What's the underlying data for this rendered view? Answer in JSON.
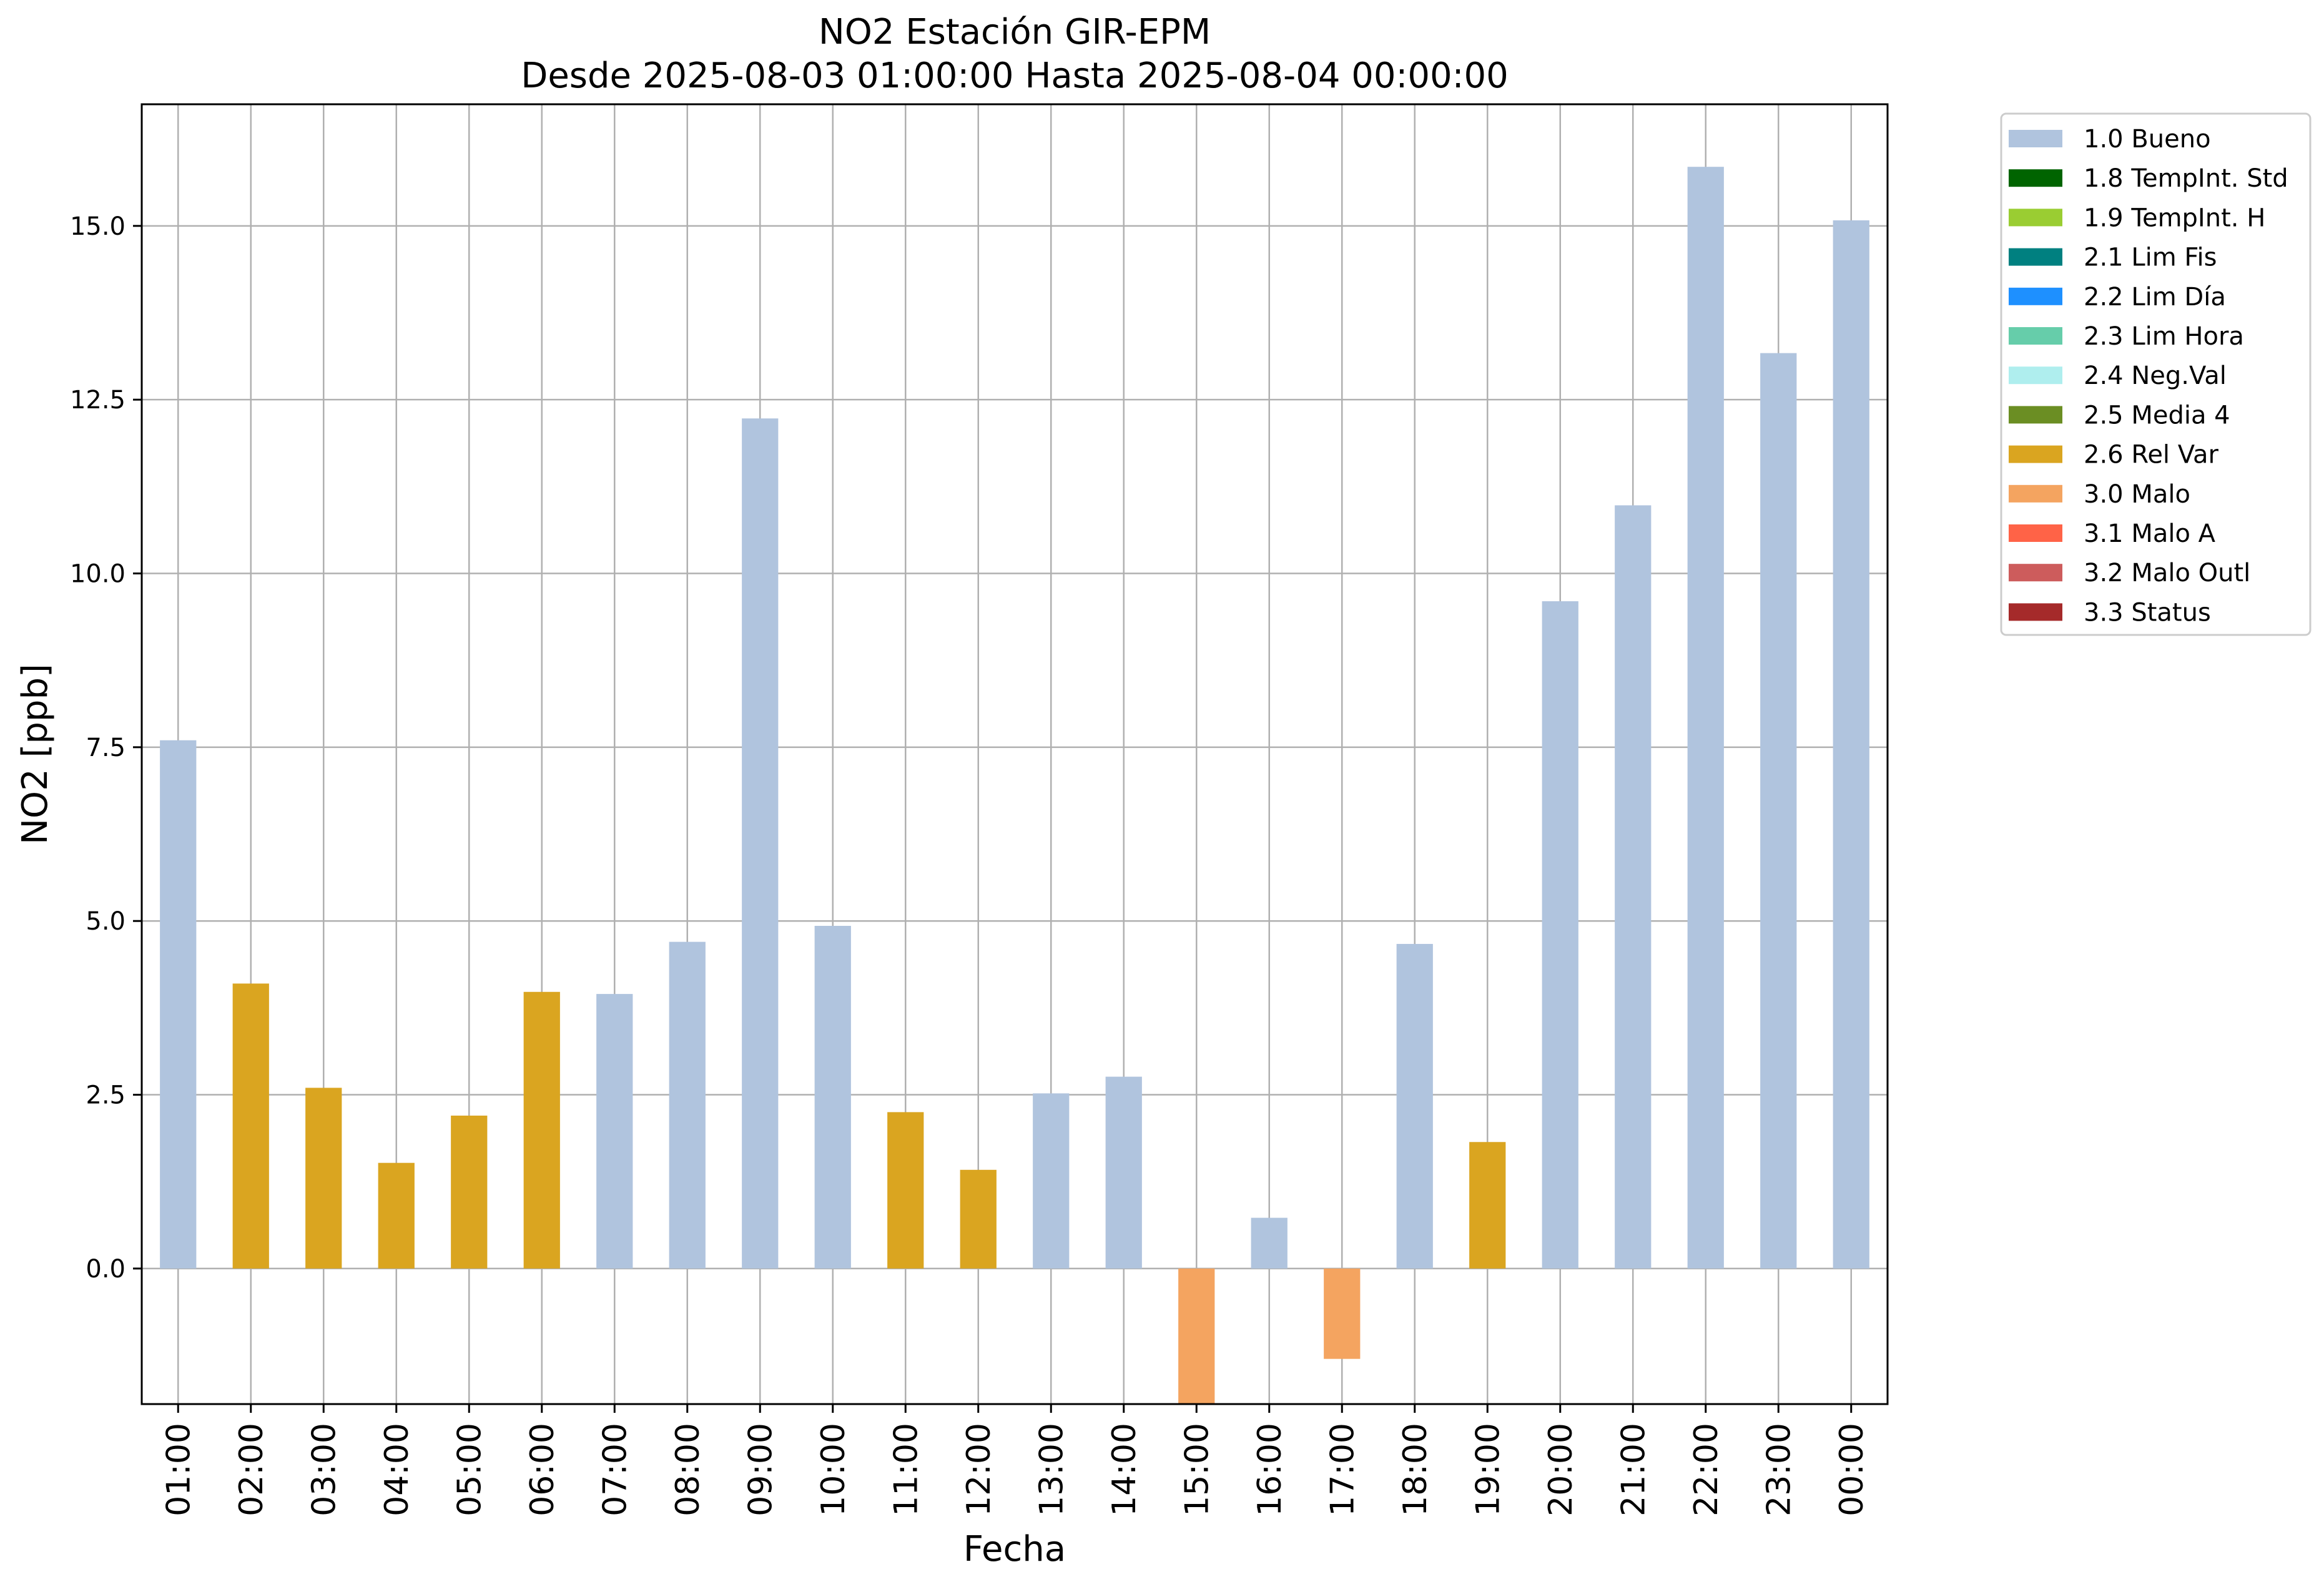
{
  "chart_data": {
    "type": "bar",
    "title": "NO2 Estación GIR-EPM",
    "subtitle": "Desde 2025-08-03 01:00:00 Hasta 2025-08-04 00:00:00",
    "xlabel": "Fecha",
    "ylabel": "NO2 [ppb]",
    "ylim": [
      -1.95,
      16.75
    ],
    "yticks": [
      0.0,
      2.5,
      5.0,
      7.5,
      10.0,
      12.5,
      15.0
    ],
    "ytick_labels": [
      "0.0",
      "2.5",
      "5.0",
      "7.5",
      "10.0",
      "12.5",
      "15.0"
    ],
    "grid": true,
    "legend_position": "outside-top-right",
    "categories": [
      "01:00",
      "02:00",
      "03:00",
      "04:00",
      "05:00",
      "06:00",
      "07:00",
      "08:00",
      "09:00",
      "10:00",
      "11:00",
      "12:00",
      "13:00",
      "14:00",
      "15:00",
      "16:00",
      "17:00",
      "18:00",
      "19:00",
      "20:00",
      "21:00",
      "22:00",
      "23:00",
      "00:00"
    ],
    "values": [
      7.6,
      4.1,
      2.6,
      1.52,
      2.2,
      3.98,
      3.95,
      4.7,
      12.23,
      4.93,
      2.25,
      1.42,
      2.52,
      2.76,
      -1.95,
      0.73,
      -1.3,
      4.67,
      1.82,
      9.6,
      10.98,
      15.85,
      13.17,
      15.08
    ],
    "flags": [
      "1.0 Bueno",
      "2.6 Rel Var",
      "2.6 Rel Var",
      "2.6 Rel Var",
      "2.6 Rel Var",
      "2.6 Rel Var",
      "1.0 Bueno",
      "1.0 Bueno",
      "1.0 Bueno",
      "1.0 Bueno",
      "2.6 Rel Var",
      "2.6 Rel Var",
      "1.0 Bueno",
      "1.0 Bueno",
      "3.0 Malo",
      "1.0 Bueno",
      "3.0 Malo",
      "1.0 Bueno",
      "2.6 Rel Var",
      "1.0 Bueno",
      "1.0 Bueno",
      "1.0 Bueno",
      "1.0 Bueno",
      "1.0 Bueno"
    ],
    "legend": [
      {
        "label": "1.0 Bueno",
        "color": "#b0c4de"
      },
      {
        "label": "1.8 TempInt. Std",
        "color": "#006400"
      },
      {
        "label": "1.9 TempInt. H",
        "color": "#9acd32"
      },
      {
        "label": "2.1 Lim Fis",
        "color": "#008080"
      },
      {
        "label": "2.2 Lim Día",
        "color": "#1e90ff"
      },
      {
        "label": "2.3 Lim Hora",
        "color": "#66cdaa"
      },
      {
        "label": "2.4 Neg.Val",
        "color": "#afeeee"
      },
      {
        "label": "2.5 Media 4",
        "color": "#6b8e23"
      },
      {
        "label": "2.6 Rel Var",
        "color": "#daa520"
      },
      {
        "label": "3.0 Malo",
        "color": "#f4a460"
      },
      {
        "label": "3.1 Malo A",
        "color": "#ff6347"
      },
      {
        "label": "3.2 Malo Outl",
        "color": "#cd5c5c"
      },
      {
        "label": "3.3 Status",
        "color": "#a52a2a"
      }
    ]
  }
}
